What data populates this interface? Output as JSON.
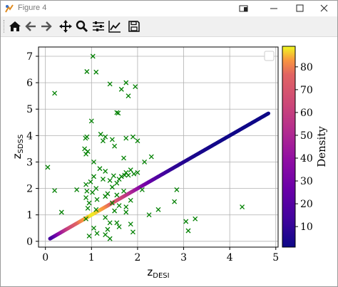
{
  "window": {
    "title": "Figure 4",
    "colors": {
      "titlebar": "#ffffff",
      "toolbar": "#f0f0f0"
    },
    "icons": [
      "figure-app-icon",
      "restore-tab-icon",
      "minimize-icon",
      "maximize-icon",
      "close-icon"
    ]
  },
  "toolbar": {
    "buttons": [
      {
        "name": "home-button",
        "icon": "home-icon"
      },
      {
        "name": "back-button",
        "icon": "arrow-left-icon"
      },
      {
        "name": "forward-button",
        "icon": "arrow-right-icon"
      },
      {
        "name": "pan-button",
        "icon": "move-arrows-icon"
      },
      {
        "name": "zoom-button",
        "icon": "magnifier-icon"
      },
      {
        "name": "configure-subplots-button",
        "icon": "sliders-icon"
      },
      {
        "name": "edit-axis-button",
        "icon": "line-chart-icon"
      },
      {
        "name": "save-button",
        "icon": "floppy-disk-icon"
      }
    ]
  },
  "chart_data": {
    "type": "scatter",
    "title": "",
    "xlabel": "z",
    "xlabel_sub": "DESI",
    "ylabel": "z",
    "ylabel_sub": "SDSS",
    "xlim": [
      -0.15,
      5.05
    ],
    "ylim": [
      -0.22,
      7.35
    ],
    "xticks": [
      0,
      1,
      2,
      3,
      4,
      5
    ],
    "yticks": [
      0,
      1,
      2,
      3,
      4,
      5,
      6,
      7
    ],
    "grid": true,
    "legend": "top-right, empty",
    "colorbar": {
      "label": "Density",
      "colormap": "plasma",
      "range": [
        1,
        89
      ],
      "ticks": [
        10,
        20,
        30,
        40,
        50,
        60,
        70,
        80
      ]
    },
    "series": [
      {
        "marker": "dot",
        "color_by": "Density",
        "line_fit": {
          "x_start": 0.1,
          "x_end": 4.85
        },
        "density_profile": [
          {
            "x": 0.15,
            "density": 15
          },
          {
            "x": 0.3,
            "density": 38
          },
          {
            "x": 0.5,
            "density": 62
          },
          {
            "x": 0.75,
            "density": 80
          },
          {
            "x": 1.0,
            "density": 88
          },
          {
            "x": 1.25,
            "density": 82
          },
          {
            "x": 1.5,
            "density": 70
          },
          {
            "x": 1.75,
            "density": 55
          },
          {
            "x": 2.0,
            "density": 38
          },
          {
            "x": 2.3,
            "density": 22
          },
          {
            "x": 2.7,
            "density": 10
          },
          {
            "x": 3.2,
            "density": 4
          },
          {
            "x": 3.8,
            "density": 2
          },
          {
            "x": 4.85,
            "density": 1
          }
        ]
      },
      {
        "marker": "x",
        "color": "#008000",
        "points": [
          [
            1.03,
            7.0
          ],
          [
            0.9,
            6.42
          ],
          [
            1.1,
            6.4
          ],
          [
            0.2,
            5.6
          ],
          [
            1.4,
            5.95
          ],
          [
            1.75,
            6.0
          ],
          [
            1.95,
            5.85
          ],
          [
            1.65,
            5.75
          ],
          [
            1.8,
            5.5
          ],
          [
            1.55,
            4.87
          ],
          [
            1.58,
            4.85
          ],
          [
            1.0,
            4.55
          ],
          [
            1.2,
            4.05
          ],
          [
            1.3,
            3.95
          ],
          [
            1.75,
            3.9
          ],
          [
            1.9,
            3.95
          ],
          [
            0.87,
            3.9
          ],
          [
            0.9,
            3.95
          ],
          [
            1.25,
            3.8
          ],
          [
            1.45,
            3.85
          ],
          [
            1.5,
            3.6
          ],
          [
            2.0,
            3.8
          ],
          [
            0.85,
            3.5
          ],
          [
            0.92,
            3.4
          ],
          [
            0.88,
            3.3
          ],
          [
            1.7,
            3.15
          ],
          [
            2.3,
            3.2
          ],
          [
            2.15,
            3.0
          ],
          [
            1.05,
            3.0
          ],
          [
            0.05,
            2.8
          ],
          [
            1.18,
            2.75
          ],
          [
            1.3,
            2.65
          ],
          [
            1.75,
            2.6
          ],
          [
            1.85,
            2.7
          ],
          [
            1.92,
            2.55
          ],
          [
            2.0,
            2.6
          ],
          [
            1.65,
            2.45
          ],
          [
            1.72,
            2.5
          ],
          [
            1.8,
            2.5
          ],
          [
            1.48,
            2.48
          ],
          [
            1.05,
            2.45
          ],
          [
            1.4,
            2.3
          ],
          [
            1.25,
            2.35
          ],
          [
            0.98,
            2.25
          ],
          [
            1.55,
            2.2
          ],
          [
            1.6,
            2.35
          ],
          [
            0.88,
            2.15
          ],
          [
            1.45,
            2.05
          ],
          [
            0.68,
            1.95
          ],
          [
            1.1,
            2.0
          ],
          [
            0.2,
            1.92
          ],
          [
            0.9,
            1.9
          ],
          [
            2.1,
            1.95
          ],
          [
            2.85,
            1.95
          ],
          [
            1.02,
            1.85
          ],
          [
            1.35,
            1.8
          ],
          [
            1.55,
            1.75
          ],
          [
            1.7,
            1.9
          ],
          [
            0.88,
            1.65
          ],
          [
            1.12,
            1.58
          ],
          [
            1.3,
            1.7
          ],
          [
            1.85,
            1.55
          ],
          [
            2.8,
            1.5
          ],
          [
            0.95,
            1.45
          ],
          [
            1.45,
            1.45
          ],
          [
            1.6,
            1.35
          ],
          [
            1.75,
            1.3
          ],
          [
            2.45,
            1.2
          ],
          [
            0.92,
            1.25
          ],
          [
            1.1,
            1.2
          ],
          [
            0.35,
            1.1
          ],
          [
            1.5,
            1.15
          ],
          [
            1.75,
            1.1
          ],
          [
            2.25,
            1.0
          ],
          [
            4.27,
            1.3
          ],
          [
            1.3,
            0.9
          ],
          [
            0.88,
            0.85
          ],
          [
            1.4,
            0.7
          ],
          [
            1.55,
            0.7
          ],
          [
            1.85,
            0.65
          ],
          [
            1.6,
            0.55
          ],
          [
            3.05,
            0.75
          ],
          [
            3.25,
            0.85
          ],
          [
            1.05,
            0.5
          ],
          [
            1.35,
            0.45
          ],
          [
            1.12,
            0.3
          ],
          [
            1.9,
            0.35
          ],
          [
            3.1,
            0.4
          ],
          [
            1.3,
            0.25
          ],
          [
            0.95,
            0.2
          ],
          [
            1.4,
            0.1
          ]
        ]
      }
    ]
  }
}
